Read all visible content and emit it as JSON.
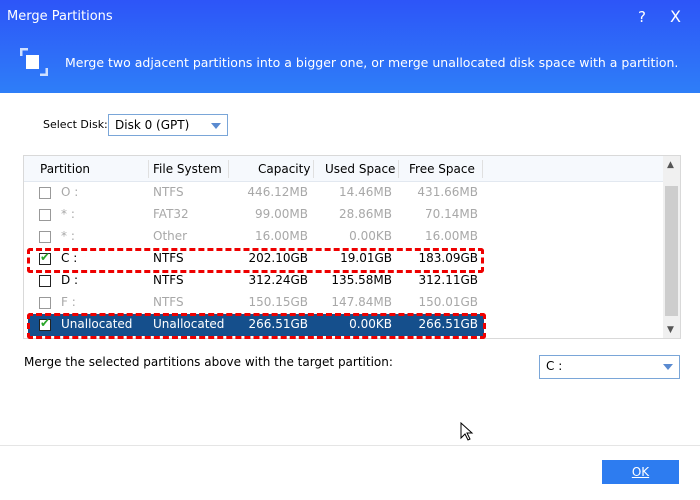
{
  "window": {
    "title": "Merge Partitions",
    "help": "?",
    "close": "X"
  },
  "banner": {
    "description": "Merge two adjacent partitions into a bigger one, or merge unallocated disk space with a partition."
  },
  "disk": {
    "label": "Select Disk:",
    "value": "Disk 0 (GPT)"
  },
  "table": {
    "headers": [
      "Partition",
      "File System",
      "Capacity",
      "Used Space",
      "Free Space"
    ],
    "rows": [
      {
        "checked": false,
        "partition": "O :",
        "fs": "NTFS",
        "capacity": "446.12MB",
        "used": "14.46MB",
        "free": "431.66MB",
        "enabled": false
      },
      {
        "checked": false,
        "partition": "* :",
        "fs": "FAT32",
        "capacity": "99.00MB",
        "used": "28.86MB",
        "free": "70.14MB",
        "enabled": false
      },
      {
        "checked": false,
        "partition": "* :",
        "fs": "Other",
        "capacity": "16.00MB",
        "used": "0.00KB",
        "free": "16.00MB",
        "enabled": false
      },
      {
        "checked": true,
        "partition": "C :",
        "fs": "NTFS",
        "capacity": "202.10GB",
        "used": "19.01GB",
        "free": "183.09GB",
        "enabled": true
      },
      {
        "checked": false,
        "partition": "D :",
        "fs": "NTFS",
        "capacity": "312.24GB",
        "used": "135.58MB",
        "free": "312.11GB",
        "enabled": true
      },
      {
        "checked": false,
        "partition": "F :",
        "fs": "NTFS",
        "capacity": "150.15GB",
        "used": "147.84MB",
        "free": "150.01GB",
        "enabled": false
      },
      {
        "checked": true,
        "partition": "Unallocated",
        "fs": "Unallocated",
        "capacity": "266.51GB",
        "used": "0.00KB",
        "free": "266.51GB",
        "enabled": true,
        "selected": true
      }
    ]
  },
  "target": {
    "label": "Merge the selected partitions above with the target partition:",
    "value": "C :"
  },
  "ok_label": "OK",
  "colors": {
    "header": "#2d55f8",
    "selected_row": "#154f8c",
    "highlight": "#ee0000"
  }
}
